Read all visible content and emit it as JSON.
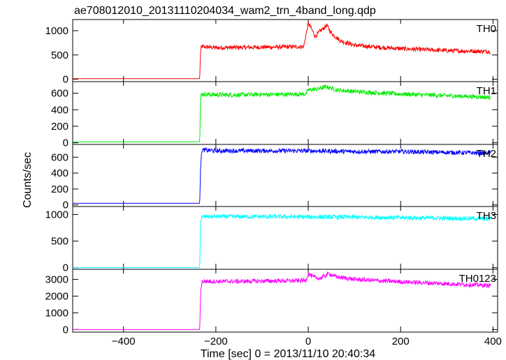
{
  "chart_data": {
    "type": "line",
    "title": "ae708012010_20131110204034_wam2_trn_4band_long.qdp",
    "xlabel": "Time [sec] 0 = 2013/11/10 20:40:34",
    "ylabel": "Counts/sec",
    "xlim": [
      -510,
      410
    ],
    "xticks": [
      -400,
      -200,
      0,
      200,
      400
    ],
    "grid": false,
    "panels": [
      {
        "name": "TH0",
        "color": "#ff0000",
        "ylim": [
          -50,
          1230
        ],
        "yticks": [
          0,
          500,
          1000
        ],
        "points": [
          [
            -510,
            10
          ],
          [
            -235,
            10
          ],
          [
            -233,
            620
          ],
          [
            -230,
            670
          ],
          [
            -200,
            650
          ],
          [
            -150,
            655
          ],
          [
            -100,
            660
          ],
          [
            -50,
            665
          ],
          [
            -10,
            670
          ],
          [
            0,
            1150
          ],
          [
            5,
            1080
          ],
          [
            15,
            880
          ],
          [
            25,
            980
          ],
          [
            40,
            1110
          ],
          [
            50,
            950
          ],
          [
            70,
            790
          ],
          [
            100,
            700
          ],
          [
            150,
            660
          ],
          [
            200,
            630
          ],
          [
            250,
            610
          ],
          [
            300,
            590
          ],
          [
            350,
            580
          ],
          [
            395,
            570
          ]
        ]
      },
      {
        "name": "TH1",
        "color": "#00ee00",
        "ylim": [
          -20,
          740
        ],
        "yticks": [
          0,
          200,
          400,
          600
        ],
        "points": [
          [
            -510,
            10
          ],
          [
            -235,
            10
          ],
          [
            -233,
            560
          ],
          [
            -230,
            590
          ],
          [
            -200,
            580
          ],
          [
            -150,
            580
          ],
          [
            -100,
            585
          ],
          [
            -50,
            585
          ],
          [
            -5,
            590
          ],
          [
            0,
            640
          ],
          [
            20,
            650
          ],
          [
            40,
            680
          ],
          [
            60,
            640
          ],
          [
            100,
            620
          ],
          [
            150,
            605
          ],
          [
            200,
            590
          ],
          [
            250,
            580
          ],
          [
            300,
            570
          ],
          [
            350,
            560
          ],
          [
            395,
            550
          ]
        ]
      },
      {
        "name": "TH2",
        "color": "#0000ff",
        "ylim": [
          -20,
          760
        ],
        "yticks": [
          0,
          200,
          400,
          600
        ],
        "points": [
          [
            -510,
            20
          ],
          [
            -235,
            20
          ],
          [
            -233,
            500
          ],
          [
            -230,
            690
          ],
          [
            -200,
            680
          ],
          [
            -100,
            680
          ],
          [
            0,
            680
          ],
          [
            100,
            670
          ],
          [
            200,
            670
          ],
          [
            300,
            660
          ],
          [
            395,
            650
          ]
        ]
      },
      {
        "name": "TH3",
        "color": "#00ffff",
        "ylim": [
          -30,
          1150
        ],
        "yticks": [
          0,
          500,
          1000
        ],
        "points": [
          [
            -510,
            0
          ],
          [
            -235,
            0
          ],
          [
            -233,
            900
          ],
          [
            -230,
            960
          ],
          [
            -200,
            960
          ],
          [
            -100,
            960
          ],
          [
            0,
            955
          ],
          [
            100,
            950
          ],
          [
            200,
            940
          ],
          [
            300,
            930
          ],
          [
            395,
            920
          ]
        ]
      },
      {
        "name": "TH0123",
        "color": "#ff00ff",
        "ylim": [
          -150,
          3600
        ],
        "yticks": [
          0,
          1000,
          2000,
          3000
        ],
        "points": [
          [
            -510,
            0
          ],
          [
            -235,
            0
          ],
          [
            -233,
            2300
          ],
          [
            -230,
            2880
          ],
          [
            -200,
            2880
          ],
          [
            -150,
            2880
          ],
          [
            -100,
            2900
          ],
          [
            -50,
            2910
          ],
          [
            -5,
            2930
          ],
          [
            0,
            3350
          ],
          [
            10,
            3150
          ],
          [
            25,
            3050
          ],
          [
            45,
            3350
          ],
          [
            60,
            3150
          ],
          [
            100,
            3000
          ],
          [
            150,
            2920
          ],
          [
            200,
            2860
          ],
          [
            250,
            2800
          ],
          [
            300,
            2740
          ],
          [
            350,
            2680
          ],
          [
            395,
            2630
          ]
        ]
      }
    ]
  }
}
